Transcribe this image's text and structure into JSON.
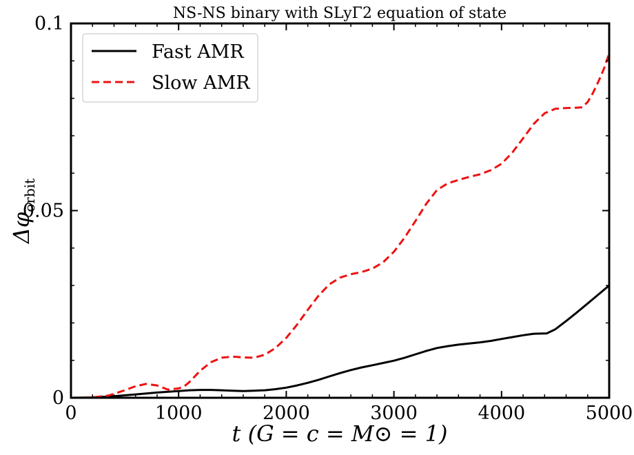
{
  "chart_data": {
    "type": "line",
    "title": "NS-NS binary with SLyΓ2 equation of state",
    "xlabel": "t (G = c = M⊙ = 1)",
    "ylabel": "Δφ",
    "ylabel_subscript": "orbit",
    "xlim": [
      0,
      5000
    ],
    "ylim": [
      0,
      0.1
    ],
    "xticks": [
      0,
      1000,
      2000,
      3000,
      4000,
      5000
    ],
    "xtick_labels": [
      "0",
      "1000",
      "2000",
      "3000",
      "4000",
      "5000"
    ],
    "yticks": [
      0,
      0.05,
      0.1
    ],
    "ytick_labels": [
      "0",
      "0.05",
      "0.1"
    ],
    "grid": false,
    "legend_position": "top-left",
    "series": [
      {
        "name": "Fast AMR",
        "color": "#000000",
        "style": "solid",
        "x": [
          0,
          200,
          400,
          600,
          800,
          1000,
          1100,
          1200,
          1300,
          1400,
          1500,
          1600,
          1700,
          1800,
          1900,
          2000,
          2100,
          2200,
          2300,
          2400,
          2500,
          2600,
          2700,
          2800,
          2900,
          3000,
          3100,
          3200,
          3300,
          3400,
          3500,
          3600,
          3700,
          3800,
          3900,
          4000,
          4100,
          4200,
          4300,
          4420,
          4500,
          4600,
          4700,
          4800,
          4900,
          5000
        ],
        "y": [
          0,
          0.0001,
          0.0004,
          0.0009,
          0.0014,
          0.0018,
          0.002,
          0.0021,
          0.0021,
          0.002,
          0.0019,
          0.0018,
          0.0019,
          0.002,
          0.0023,
          0.0027,
          0.0033,
          0.004,
          0.0048,
          0.0057,
          0.0066,
          0.0074,
          0.0081,
          0.0087,
          0.0093,
          0.0099,
          0.0107,
          0.0116,
          0.0125,
          0.0133,
          0.0138,
          0.0142,
          0.0145,
          0.0148,
          0.0152,
          0.0157,
          0.0162,
          0.0167,
          0.0171,
          0.0172,
          0.0183,
          0.0205,
          0.0228,
          0.0252,
          0.0276,
          0.03
        ]
      },
      {
        "name": "Slow AMR",
        "color": "#ee1111",
        "style": "dashed",
        "x": [
          0,
          200,
          350,
          500,
          600,
          700,
          800,
          900,
          1000,
          1050,
          1100,
          1200,
          1300,
          1400,
          1500,
          1600,
          1700,
          1800,
          1900,
          2000,
          2100,
          2200,
          2300,
          2400,
          2500,
          2600,
          2700,
          2800,
          2900,
          3000,
          3100,
          3200,
          3300,
          3400,
          3500,
          3600,
          3700,
          3800,
          3900,
          4000,
          4100,
          4200,
          4300,
          4400,
          4500,
          4600,
          4700,
          4750,
          4800,
          4850,
          4900,
          4950,
          5000
        ],
        "y": [
          0,
          0.0001,
          0.0006,
          0.002,
          0.0031,
          0.0037,
          0.0033,
          0.0022,
          0.0025,
          0.003,
          0.0042,
          0.0072,
          0.0095,
          0.0107,
          0.011,
          0.0108,
          0.0107,
          0.0115,
          0.0133,
          0.016,
          0.0195,
          0.0235,
          0.0273,
          0.0303,
          0.0321,
          0.033,
          0.0336,
          0.0345,
          0.0362,
          0.039,
          0.0428,
          0.0472,
          0.0518,
          0.0555,
          0.0573,
          0.0582,
          0.059,
          0.0597,
          0.0608,
          0.0625,
          0.0655,
          0.0693,
          0.0732,
          0.076,
          0.0772,
          0.0774,
          0.0775,
          0.0776,
          0.079,
          0.0815,
          0.0845,
          0.0878,
          0.092
        ]
      }
    ]
  }
}
